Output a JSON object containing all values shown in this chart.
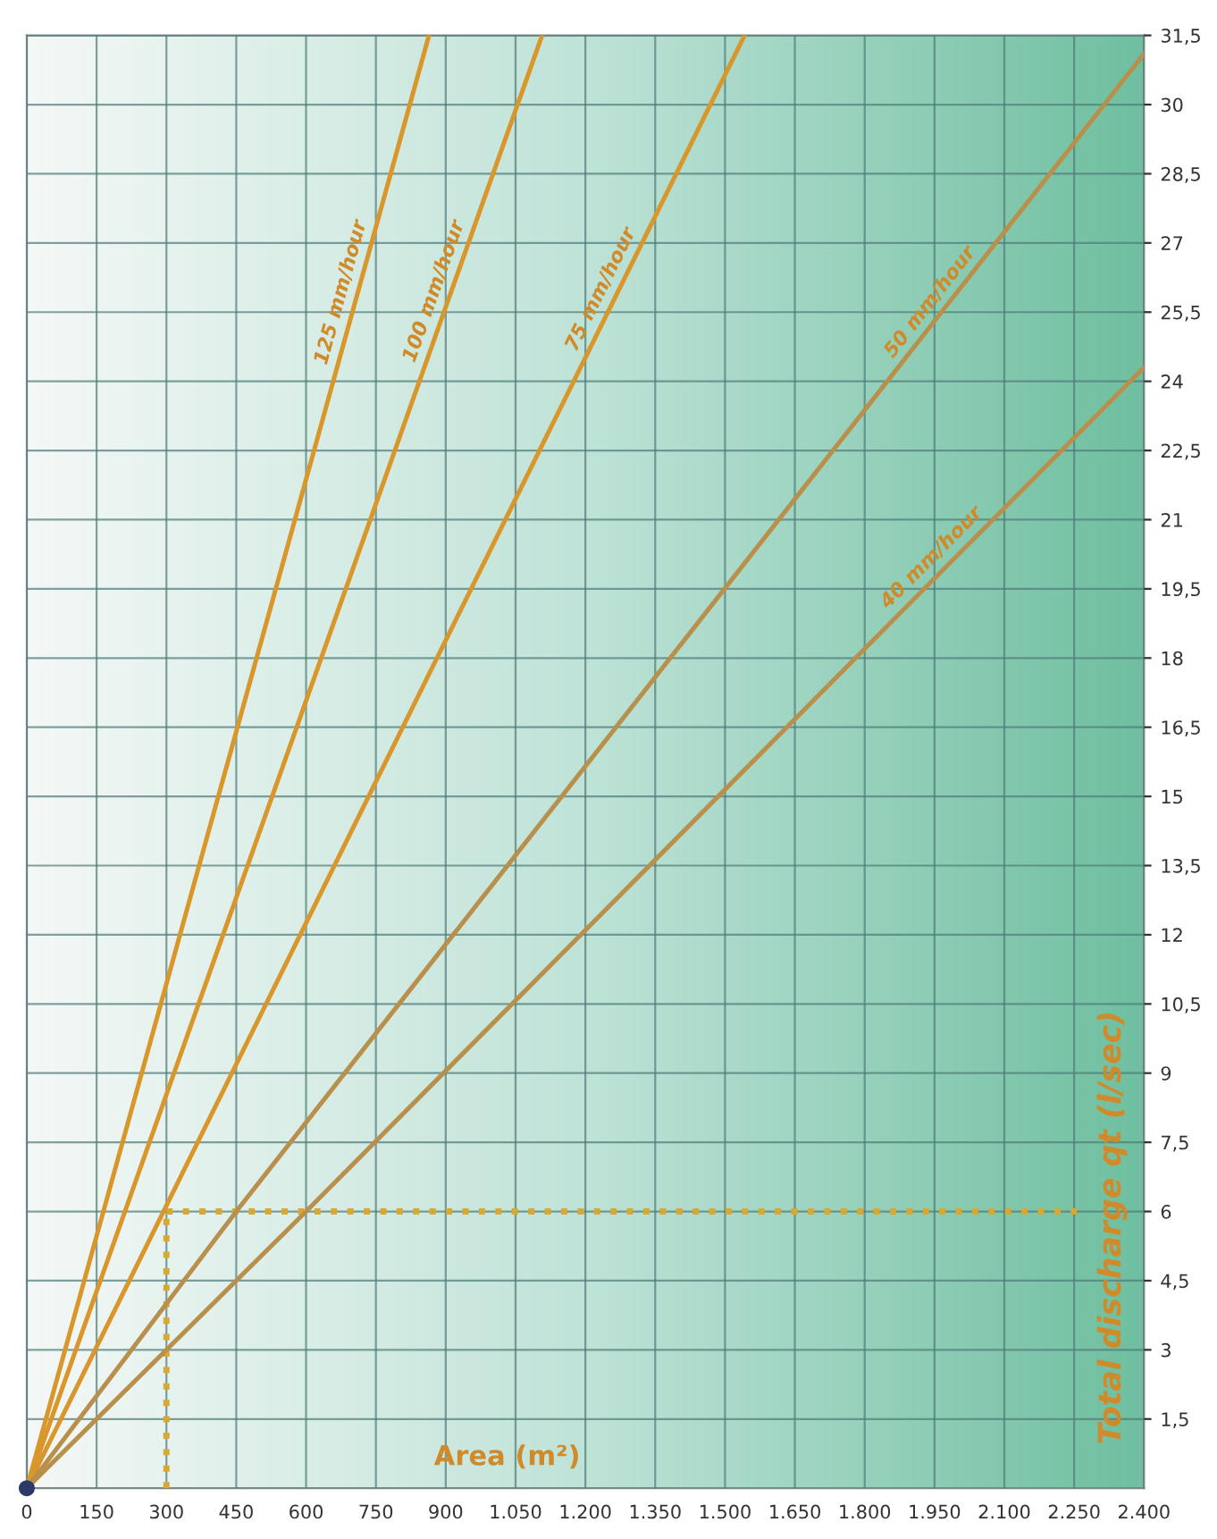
{
  "chart_data": {
    "type": "line",
    "xlabel": "Area (m²)",
    "ylabel": "Total discharge qt (l/sec)",
    "series": [
      {
        "name": "125 mm/hour",
        "color": "#d9962a",
        "x": [
          0,
          864
        ],
        "values": [
          0,
          31.5
        ]
      },
      {
        "name": "100 mm/hour",
        "color": "#d9962a",
        "x": [
          0,
          1107
        ],
        "values": [
          0,
          31.5
        ]
      },
      {
        "name": "75 mm/hour",
        "color": "#d9962a",
        "x": [
          0,
          1542
        ],
        "values": [
          0,
          31.5
        ]
      },
      {
        "name": "50 mm/hour",
        "color": "#b98f4c",
        "x": [
          0,
          450,
          2400
        ],
        "values": [
          0,
          6,
          31.1
        ]
      },
      {
        "name": "40 mm/hour",
        "color": "#b98f4c",
        "x": [
          0,
          600,
          2400
        ],
        "values": [
          0,
          6,
          24.3
        ]
      },
      {
        "type": "scatter",
        "color": "#2b3a66",
        "x": [
          0
        ],
        "values": [
          0
        ]
      }
    ],
    "ref_lines": [
      {
        "axis": "x",
        "value": 300,
        "color": "#d9a830",
        "line_style": "dotted"
      },
      {
        "axis": "y",
        "value": 6,
        "color": "#d9a830",
        "line_style": "dotted"
      }
    ],
    "xlim": [
      0,
      2400
    ],
    "ylim": [
      0,
      31.5
    ],
    "xticks": [
      0,
      150,
      300,
      450,
      600,
      750,
      900,
      {
        "value": 1050,
        "label": "1.050"
      },
      {
        "value": 1200,
        "label": "1.200"
      },
      {
        "value": 1350,
        "label": "1.350"
      },
      {
        "value": 1500,
        "label": "1.500"
      },
      {
        "value": 1650,
        "label": "1.650"
      },
      {
        "value": 1800,
        "label": "1.800"
      },
      {
        "value": 1950,
        "label": "1.950"
      },
      {
        "value": 2100,
        "label": "2.100"
      },
      {
        "value": 2250,
        "label": "2.250"
      },
      {
        "value": 2400,
        "label": "2.400"
      }
    ],
    "yticks": [
      {
        "value": 1.5,
        "label": "1,5"
      },
      3,
      {
        "value": 4.5,
        "label": "4,5"
      },
      6,
      {
        "value": 7.5,
        "label": "7,5"
      },
      9,
      {
        "value": 10.5,
        "label": "10,5"
      },
      12,
      {
        "value": 13.5,
        "label": "13,5"
      },
      15,
      {
        "value": 16.5,
        "label": "16,5"
      },
      18,
      {
        "value": 19.5,
        "label": "19,5"
      },
      21,
      {
        "value": 22.5,
        "label": "22,5"
      },
      24,
      {
        "value": 25.5,
        "label": "25,5"
      },
      27,
      {
        "value": 28.5,
        "label": "28,5"
      },
      30,
      {
        "value": 31.5,
        "label": "31,5"
      }
    ],
    "grid": true,
    "legend": false
  }
}
